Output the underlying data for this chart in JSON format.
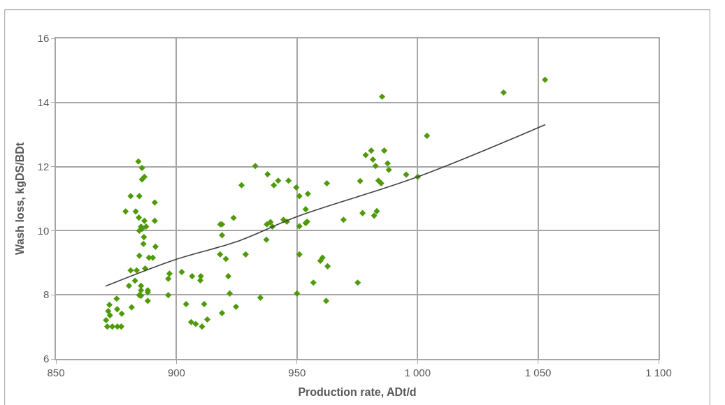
{
  "chart_data": {
    "type": "scatter",
    "xlabel": "Production rate, ADt/d",
    "ylabel": "Wash loss, kgDS/BDt",
    "xlim": [
      850,
      1100
    ],
    "xticks": [
      850,
      900,
      950,
      {
        "value": 1000,
        "label": "1 000"
      },
      {
        "value": 1050,
        "label": "1 050"
      },
      {
        "value": 1100,
        "label": "1 100"
      }
    ],
    "ylim": [
      6,
      16
    ],
    "yticks": [
      6,
      8,
      10,
      12,
      14,
      16
    ],
    "grid": true,
    "series": [
      {
        "marker": "diamond",
        "color": "#4f9a0a",
        "x": [
          884.2,
          885.7,
          885.7,
          886.7,
          881.0,
          884.6,
          891.0,
          878.9,
          883.1,
          884.4,
          886.7,
          891.0,
          885.3,
          887.4,
          884.6,
          885.7,
          886.5,
          886.3,
          891.3,
          884.6,
          888.6,
          890.2,
          881.0,
          883.5,
          887.0,
          897.1,
          896.6,
          882.8,
          880.3,
          885.3,
          885.3,
          888.1,
          888.1,
          884.6,
          885.3,
          896.6,
          888.1,
          875.2,
          872.2,
          875.4,
          881.4,
          877.3,
          871.7,
          872.4,
          870.8,
          871.3,
          873.4,
          875.5,
          877.1,
          932.7,
          937.8,
          940.4,
          942.2,
          946.5,
          927.0,
          949.7,
          951.0,
          954.5,
          953.6,
          923.7,
          918.2,
          918.9,
          937.5,
          939.0,
          939.8,
          944.4,
          945.8,
          954.2,
          953.6,
          951.0,
          918.9,
          937.3,
          918.1,
          920.5,
          928.7,
          951.0,
          959.7,
          960.6,
          902.2,
          906.5,
          910.1,
          909.9,
          921.5,
          956.8,
          922.1,
          950.0,
          934.8,
          904.0,
          911.5,
          924.7,
          918.9,
          912.8,
          906.1,
          908.0,
          910.6,
          985.3,
          1003.9,
          978.5,
          980.8,
          986.2,
          981.5,
          982.6,
          987.6,
          988.1,
          995.3,
          1000.1,
          962.4,
          976.2,
          983.8,
          984.9,
          977.2,
          983.1,
          982.0,
          969.3,
          962.7,
          975.2,
          962.1,
          1035.7,
          1052.9
        ],
        "values": [
          12.16,
          11.96,
          11.6,
          11.68,
          11.08,
          11.08,
          10.88,
          10.6,
          10.6,
          10.41,
          10.31,
          10.31,
          10.13,
          10.13,
          10.0,
          10.06,
          9.8,
          9.59,
          9.5,
          9.22,
          9.16,
          9.16,
          8.76,
          8.76,
          8.82,
          8.66,
          8.5,
          8.44,
          8.28,
          8.28,
          8.14,
          8.14,
          8.08,
          7.99,
          7.97,
          7.99,
          7.81,
          7.88,
          7.69,
          7.55,
          7.61,
          7.41,
          7.49,
          7.36,
          7.21,
          7.01,
          7.01,
          7.01,
          7.01,
          12.02,
          11.76,
          11.42,
          11.56,
          11.56,
          11.42,
          11.35,
          11.08,
          11.15,
          10.67,
          10.4,
          10.2,
          10.2,
          10.2,
          10.27,
          10.13,
          10.34,
          10.28,
          10.28,
          10.24,
          10.14,
          9.86,
          9.72,
          9.26,
          9.12,
          9.26,
          9.26,
          9.06,
          9.16,
          8.71,
          8.58,
          8.58,
          8.45,
          8.58,
          8.38,
          8.04,
          8.04,
          7.91,
          7.71,
          7.71,
          7.63,
          7.43,
          7.23,
          7.15,
          7.09,
          7.01,
          14.18,
          12.96,
          12.36,
          12.5,
          12.5,
          12.22,
          12.02,
          12.1,
          11.9,
          11.75,
          11.68,
          11.48,
          11.55,
          11.56,
          11.48,
          10.55,
          10.61,
          10.47,
          10.34,
          8.89,
          8.38,
          7.81,
          14.31,
          14.71
        ]
      },
      {
        "type": "line",
        "color": "#404040",
        "x": [
          870.6,
          900,
          925,
          950,
          1000,
          1053
        ],
        "values": [
          8.27,
          9.11,
          9.66,
          10.44,
          11.68,
          13.31
        ]
      }
    ]
  }
}
